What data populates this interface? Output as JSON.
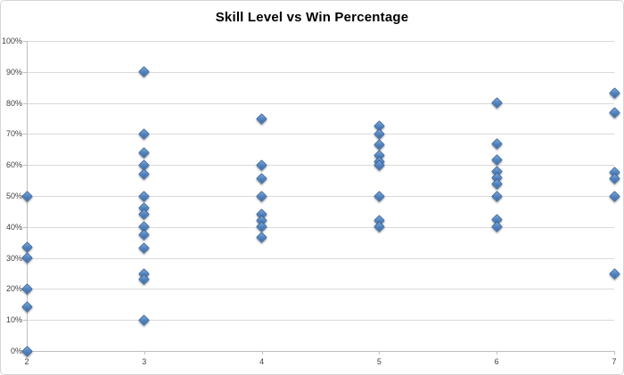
{
  "chart_data": {
    "type": "scatter",
    "title": "Skill Level vs Win Percentage",
    "xlabel": "",
    "ylabel": "",
    "xlim": [
      2,
      7
    ],
    "ylim": [
      0,
      100
    ],
    "x_tick_labels": [
      "2",
      "3",
      "4",
      "5",
      "6",
      "7"
    ],
    "y_tick_labels": [
      "100%",
      "90%",
      "80%",
      "70%",
      "60%",
      "50%",
      "40%",
      "30%",
      "20%",
      "10%",
      "0%"
    ],
    "grid": true,
    "legend": false,
    "marker": {
      "shape": "diamond",
      "color": "#4F81BD"
    },
    "points": [
      {
        "x": 2,
        "y": 50
      },
      {
        "x": 2,
        "y": 33.5
      },
      {
        "x": 2,
        "y": 30
      },
      {
        "x": 2,
        "y": 20
      },
      {
        "x": 2,
        "y": 14.3
      },
      {
        "x": 2,
        "y": 0
      },
      {
        "x": 3,
        "y": 90
      },
      {
        "x": 3,
        "y": 70
      },
      {
        "x": 3,
        "y": 64
      },
      {
        "x": 3,
        "y": 60
      },
      {
        "x": 3,
        "y": 57
      },
      {
        "x": 3,
        "y": 50
      },
      {
        "x": 3,
        "y": 46
      },
      {
        "x": 3,
        "y": 44
      },
      {
        "x": 3,
        "y": 40
      },
      {
        "x": 3,
        "y": 37.5
      },
      {
        "x": 3,
        "y": 33.3
      },
      {
        "x": 3,
        "y": 25
      },
      {
        "x": 3,
        "y": 23
      },
      {
        "x": 3,
        "y": 10
      },
      {
        "x": 4,
        "y": 75
      },
      {
        "x": 4,
        "y": 60
      },
      {
        "x": 4,
        "y": 55.5
      },
      {
        "x": 4,
        "y": 50
      },
      {
        "x": 4,
        "y": 44
      },
      {
        "x": 4,
        "y": 42
      },
      {
        "x": 4,
        "y": 40
      },
      {
        "x": 4,
        "y": 36.5
      },
      {
        "x": 5,
        "y": 72.5
      },
      {
        "x": 5,
        "y": 70
      },
      {
        "x": 5,
        "y": 66.5
      },
      {
        "x": 5,
        "y": 63
      },
      {
        "x": 5,
        "y": 61
      },
      {
        "x": 5,
        "y": 60
      },
      {
        "x": 5,
        "y": 50
      },
      {
        "x": 5,
        "y": 42
      },
      {
        "x": 5,
        "y": 40
      },
      {
        "x": 6,
        "y": 80
      },
      {
        "x": 6,
        "y": 66.7
      },
      {
        "x": 6,
        "y": 61.5
      },
      {
        "x": 6,
        "y": 58
      },
      {
        "x": 6,
        "y": 56
      },
      {
        "x": 6,
        "y": 54
      },
      {
        "x": 6,
        "y": 50
      },
      {
        "x": 6,
        "y": 42.5
      },
      {
        "x": 6,
        "y": 40
      },
      {
        "x": 7,
        "y": 83.3
      },
      {
        "x": 7,
        "y": 77
      },
      {
        "x": 7,
        "y": 57.5
      },
      {
        "x": 7,
        "y": 55.5
      },
      {
        "x": 7,
        "y": 50
      },
      {
        "x": 7,
        "y": 25
      }
    ],
    "colors": {
      "marker_fill": "#4F81BD",
      "marker_border": "#3A66A0",
      "gridline": "#D9D9D9",
      "axis": "#BFBFBF",
      "tick_label": "#3F3F3F",
      "title": "#000000",
      "background": "#FFFFFF"
    }
  }
}
